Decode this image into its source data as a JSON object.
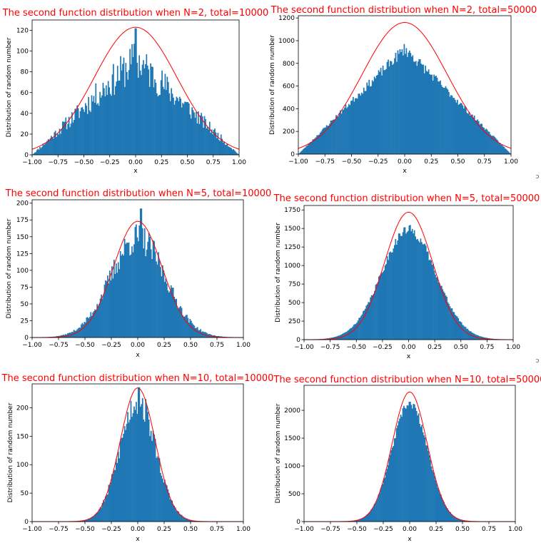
{
  "figure": {
    "stray_marks": [
      "ↄ",
      "ↄ"
    ]
  },
  "chart_data": [
    {
      "type": "bar",
      "title": "The second function distribution when N=2, total=10000",
      "xlabel": "x",
      "ylabel": "Distribution of random number",
      "xlim": [
        -1.0,
        1.0
      ],
      "ylim": [
        0,
        130
      ],
      "xticks": [
        "−1.00",
        "−0.75",
        "−0.50",
        "−0.25",
        "0.00",
        "0.25",
        "0.50",
        "0.75",
        "1.00"
      ],
      "yticks": [
        "0",
        "20",
        "40",
        "60",
        "80",
        "100",
        "120"
      ],
      "xtick_values": [
        -1,
        -0.75,
        -0.5,
        -0.25,
        0,
        0.25,
        0.5,
        0.75,
        1
      ],
      "ytick_values": [
        0,
        20,
        40,
        60,
        80,
        100,
        120
      ],
      "histogram": {
        "bins": 200,
        "peak": 92,
        "shape": "triangular",
        "noise": 0.22,
        "seed": 11,
        "spikes": [
          [
            0.0,
            122
          ]
        ]
      },
      "curve": {
        "label_color": "#ff0000",
        "peak": 123,
        "sigma": 0.4,
        "spread_note": "gaussian overlay"
      },
      "bar_color": "#1f77b4",
      "grid": false
    },
    {
      "type": "bar",
      "title": "The second function distribution when N=2, total=50000",
      "xlabel": "x",
      "ylabel": "Distribution of random number",
      "xlim": [
        -1.0,
        1.0
      ],
      "ylim": [
        0,
        1220
      ],
      "xticks": [
        "−1.00",
        "−0.75",
        "−0.50",
        "−0.25",
        "0.00",
        "0.25",
        "0.50",
        "0.75",
        "1.00"
      ],
      "yticks": [
        "0",
        "200",
        "400",
        "600",
        "800",
        "1000",
        "1200"
      ],
      "xtick_values": [
        -1,
        -0.75,
        -0.5,
        -0.25,
        0,
        0.25,
        0.5,
        0.75,
        1
      ],
      "ytick_values": [
        0,
        200,
        400,
        600,
        800,
        1000,
        1200
      ],
      "histogram": {
        "bins": 200,
        "peak": 930,
        "shape": "triangular",
        "noise": 0.06,
        "seed": 23,
        "spikes": []
      },
      "curve": {
        "label_color": "#ff0000",
        "peak": 1160,
        "sigma": 0.4
      },
      "bar_color": "#1f77b4",
      "grid": false
    },
    {
      "type": "bar",
      "title": "The second function distribution when N=5, total=10000",
      "xlabel": "x",
      "ylabel": "Distribution of random number",
      "xlim": [
        -1.0,
        1.0
      ],
      "ylim": [
        0,
        205
      ],
      "xticks": [
        "−1.00",
        "−0.75",
        "−0.50",
        "−0.25",
        "0.00",
        "0.25",
        "0.50",
        "0.75",
        "1.00"
      ],
      "yticks": [
        "0",
        "25",
        "50",
        "75",
        "100",
        "125",
        "150",
        "175",
        "200"
      ],
      "xtick_values": [
        -1,
        -0.75,
        -0.5,
        -0.25,
        0,
        0.25,
        0.5,
        0.75,
        1
      ],
      "ytick_values": [
        0,
        25,
        50,
        75,
        100,
        125,
        150,
        175,
        200
      ],
      "histogram": {
        "bins": 200,
        "peak": 148,
        "shape": "gauss",
        "sigma": 0.26,
        "noise": 0.16,
        "seed": 37,
        "spikes": [
          [
            0.03,
            192
          ]
        ]
      },
      "curve": {
        "label_color": "#ff0000",
        "peak": 173,
        "sigma": 0.23
      },
      "bar_color": "#1f77b4",
      "grid": false
    },
    {
      "type": "bar",
      "title": "The second function distribution when N=5, total=50000",
      "xlabel": "x",
      "ylabel": "Distribution of random number",
      "xlim": [
        -1.0,
        1.0
      ],
      "ylim": [
        0,
        1810
      ],
      "xticks": [
        "−1.00",
        "−0.75",
        "−0.50",
        "−0.25",
        "0.00",
        "0.25",
        "0.50",
        "0.75",
        "1.00"
      ],
      "yticks": [
        "0",
        "250",
        "500",
        "750",
        "1000",
        "1250",
        "1500",
        "1750"
      ],
      "xtick_values": [
        -1,
        -0.75,
        -0.5,
        -0.25,
        0,
        0.25,
        0.5,
        0.75,
        1
      ],
      "ytick_values": [
        0,
        250,
        500,
        750,
        1000,
        1250,
        1500,
        1750
      ],
      "histogram": {
        "bins": 200,
        "peak": 1480,
        "shape": "gauss",
        "sigma": 0.26,
        "noise": 0.05,
        "seed": 41,
        "spikes": []
      },
      "curve": {
        "label_color": "#ff0000",
        "peak": 1720,
        "sigma": 0.23
      },
      "bar_color": "#1f77b4",
      "grid": false
    },
    {
      "type": "bar",
      "title": "The second function distribution when N=10, total=10000",
      "xlabel": "x",
      "ylabel": "Distribution of random number",
      "xlim": [
        -1.0,
        1.0
      ],
      "ylim": [
        0,
        242
      ],
      "xticks": [
        "−1.00",
        "−0.75",
        "−0.50",
        "−0.25",
        "0.00",
        "0.25",
        "0.50",
        "0.75",
        "1.00"
      ],
      "yticks": [
        "0",
        "50",
        "100",
        "150",
        "200"
      ],
      "xtick_values": [
        -1,
        -0.75,
        -0.5,
        -0.25,
        0,
        0.25,
        0.5,
        0.75,
        1
      ],
      "ytick_values": [
        0,
        50,
        100,
        150,
        200
      ],
      "histogram": {
        "bins": 200,
        "peak": 212,
        "shape": "gauss",
        "sigma": 0.17,
        "noise": 0.13,
        "seed": 53,
        "spikes": [
          [
            0.01,
            236
          ]
        ]
      },
      "curve": {
        "label_color": "#ff0000",
        "peak": 235,
        "sigma": 0.165
      },
      "bar_color": "#1f77b4",
      "grid": false
    },
    {
      "type": "bar",
      "title": "The second function distribution when N=10, total=50000",
      "xlabel": "x",
      "ylabel": "Distribution of random number",
      "xlim": [
        -1.0,
        1.0
      ],
      "ylim": [
        0,
        2450
      ],
      "xticks": [
        "−1.00",
        "−0.75",
        "−0.50",
        "−0.25",
        "0.00",
        "0.25",
        "0.50",
        "0.75",
        "1.00"
      ],
      "yticks": [
        "0",
        "500",
        "1000",
        "1500",
        "2000"
      ],
      "xtick_values": [
        -1,
        -0.75,
        -0.5,
        -0.25,
        0,
        0.25,
        0.5,
        0.75,
        1
      ],
      "ytick_values": [
        0,
        500,
        1000,
        1500,
        2000
      ],
      "histogram": {
        "bins": 200,
        "peak": 2120,
        "shape": "gauss",
        "sigma": 0.17,
        "noise": 0.04,
        "seed": 67,
        "spikes": []
      },
      "curve": {
        "label_color": "#ff0000",
        "peak": 2330,
        "sigma": 0.165
      },
      "bar_color": "#1f77b4",
      "grid": false
    }
  ]
}
